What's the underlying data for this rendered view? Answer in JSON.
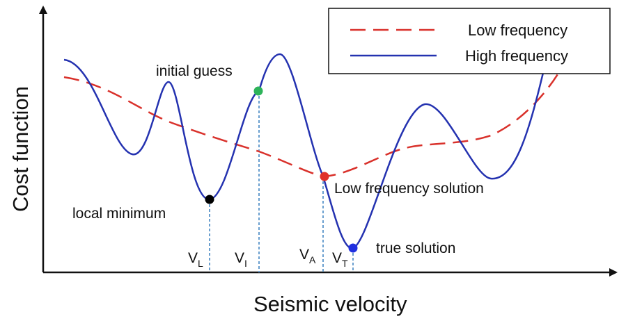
{
  "axes": {
    "x_label": "Seismic velocity",
    "y_label": "Cost function"
  },
  "legend": {
    "items": [
      {
        "label": "Low frequency",
        "style": "dashed",
        "color": "#d9312b"
      },
      {
        "label": "High frequency",
        "style": "solid",
        "color": "#2432b0"
      }
    ]
  },
  "annotations": {
    "initial_guess": "initial guess",
    "local_minimum": "local minimum",
    "low_frequency_solution": "Low frequency solution",
    "true_solution": "true solution"
  },
  "velocity_markers": [
    {
      "main": "V",
      "sub": "L"
    },
    {
      "main": "V",
      "sub": "I"
    },
    {
      "main": "V",
      "sub": "A"
    },
    {
      "main": "V",
      "sub": "T"
    }
  ],
  "points": [
    {
      "name": "initial-guess-point",
      "color": "#2db35a"
    },
    {
      "name": "local-minimum-point",
      "color": "#000000"
    },
    {
      "name": "low-frequency-solution-point",
      "color": "#e0302a"
    },
    {
      "name": "true-solution-point",
      "color": "#1f2fe0"
    }
  ],
  "colors": {
    "high_frequency_curve": "#2432b0",
    "low_frequency_curve": "#d9312b",
    "guide_line": "#6a9fcf",
    "axis": "#111111"
  }
}
